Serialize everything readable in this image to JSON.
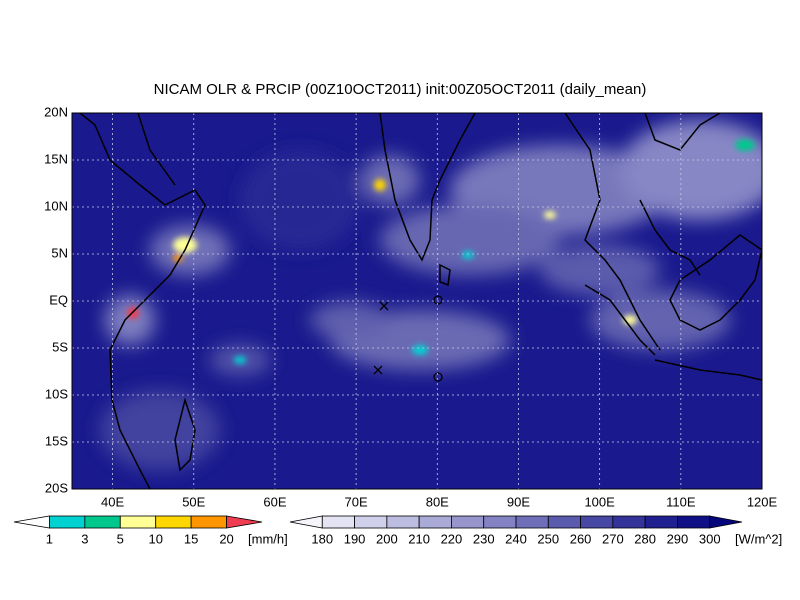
{
  "title": "NICAM OLR & PRCIP (00Z10OCT2011) init:00Z05OCT2011 (daily_mean)",
  "map": {
    "lat_labels": [
      "20N",
      "15N",
      "10N",
      "5N",
      "EQ",
      "5S",
      "10S",
      "15S",
      "20S"
    ],
    "lon_labels": [
      "40E",
      "50E",
      "60E",
      "70E",
      "80E",
      "90E",
      "100E",
      "110E",
      "120E"
    ]
  },
  "precip_colorbar": {
    "labels": [
      "1",
      "3",
      "5",
      "10",
      "15",
      "20"
    ],
    "unit": "[mm/h]",
    "colors": [
      "#ffffff",
      "#00d2d2",
      "#00c88c",
      "#ffff96",
      "#ffd700",
      "#ff9600",
      "#f03c50"
    ]
  },
  "olr_colorbar": {
    "labels": [
      "180",
      "190",
      "200",
      "210",
      "220",
      "230",
      "240",
      "250",
      "260",
      "270",
      "280",
      "290",
      "300"
    ],
    "unit": "[W/m^2]",
    "colors": [
      "#f5f5fb",
      "#e3e3f3",
      "#d0d0ea",
      "#bdbde1",
      "#aaaad7",
      "#9696cd",
      "#8383c3",
      "#6f6fb9",
      "#5b5bae",
      "#4747a4",
      "#33339a",
      "#202090",
      "#101086",
      "#05057c"
    ]
  }
}
